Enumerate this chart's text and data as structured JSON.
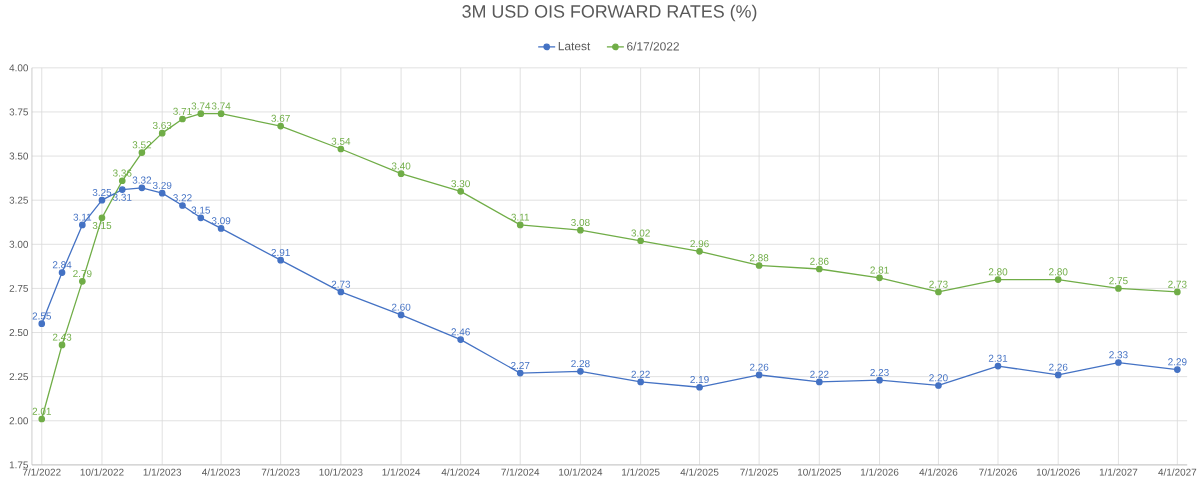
{
  "chart_data": {
    "type": "line",
    "title": "3M USD OIS FORWARD RATES (%)",
    "x": [
      "2022-07-01",
      "2022-08-01",
      "2022-09-01",
      "2022-10-01",
      "2022-11-01",
      "2022-12-01",
      "2023-01-01",
      "2023-02-01",
      "2023-03-01",
      "2023-04-01",
      "2023-07-01",
      "2023-10-01",
      "2024-01-01",
      "2024-04-01",
      "2024-07-01",
      "2024-10-01",
      "2025-01-01",
      "2025-04-01",
      "2025-07-01",
      "2025-10-01",
      "2026-01-01",
      "2026-04-01",
      "2026-07-01",
      "2026-10-01",
      "2027-01-01",
      "2027-04-01"
    ],
    "series": [
      {
        "name": "Latest",
        "color": "#4472c4",
        "values": [
          2.55,
          2.84,
          3.11,
          3.25,
          3.31,
          3.32,
          3.29,
          3.22,
          3.15,
          3.09,
          2.91,
          2.73,
          2.6,
          2.46,
          2.27,
          2.28,
          2.22,
          2.19,
          2.26,
          2.22,
          2.23,
          2.2,
          2.31,
          2.26,
          2.33,
          2.29
        ],
        "value_labels": [
          "2.55",
          "2.84",
          "3.11",
          "3.25",
          "3.31",
          "3.32",
          "3.29",
          "3.22",
          "3.15",
          "3.09",
          "2.91",
          "2.73",
          "2.60",
          "2.46",
          "2.27",
          "2.28",
          "2.22",
          "2.19",
          "2.26",
          "2.22",
          "2.23",
          "2.20",
          "2.31",
          "2.26",
          "2.33",
          "2.29"
        ]
      },
      {
        "name": "6/17/2022",
        "color": "#70ad47",
        "values": [
          2.01,
          2.43,
          2.79,
          3.15,
          3.36,
          3.52,
          3.63,
          3.71,
          3.74,
          3.74,
          3.67,
          3.54,
          3.4,
          3.3,
          3.11,
          3.08,
          3.02,
          2.96,
          2.88,
          2.86,
          2.81,
          2.73,
          2.8,
          2.8,
          2.75,
          2.73
        ],
        "value_labels": [
          "2.01",
          "2.43",
          "2.79",
          "3.15",
          "3.36",
          "3.52",
          "3.63",
          "3.71",
          "3.74",
          "3.74",
          "3.67",
          "3.54",
          "3.40",
          "3.30",
          "3.11",
          "3.08",
          "3.02",
          "2.96",
          "2.88",
          "2.86",
          "2.81",
          "2.73",
          "2.80",
          "2.80",
          "2.75",
          "2.73"
        ]
      }
    ],
    "xlim": [
      "2022-06-16",
      "2027-04-16"
    ],
    "xticks": [
      {
        "value": "2022-07-01",
        "label": "7/1/2022"
      },
      {
        "value": "2022-10-01",
        "label": "10/1/2022"
      },
      {
        "value": "2023-01-01",
        "label": "1/1/2023"
      },
      {
        "value": "2023-04-01",
        "label": "4/1/2023"
      },
      {
        "value": "2023-07-01",
        "label": "7/1/2023"
      },
      {
        "value": "2023-10-01",
        "label": "10/1/2023"
      },
      {
        "value": "2024-01-01",
        "label": "1/1/2024"
      },
      {
        "value": "2024-04-01",
        "label": "4/1/2024"
      },
      {
        "value": "2024-07-01",
        "label": "7/1/2024"
      },
      {
        "value": "2024-10-01",
        "label": "10/1/2024"
      },
      {
        "value": "2025-01-01",
        "label": "1/1/2025"
      },
      {
        "value": "2025-04-01",
        "label": "4/1/2025"
      },
      {
        "value": "2025-07-01",
        "label": "7/1/2025"
      },
      {
        "value": "2025-10-01",
        "label": "10/1/2025"
      },
      {
        "value": "2026-01-01",
        "label": "1/1/2026"
      },
      {
        "value": "2026-04-01",
        "label": "4/1/2026"
      },
      {
        "value": "2026-07-01",
        "label": "7/1/2026"
      },
      {
        "value": "2026-10-01",
        "label": "10/1/2026"
      },
      {
        "value": "2027-01-01",
        "label": "1/1/2027"
      },
      {
        "value": "2027-04-01",
        "label": "4/1/2027"
      }
    ],
    "ylim": [
      1.75,
      4
    ],
    "yticks": [
      1.75,
      {
        "value": 2,
        "label": "2.00"
      },
      2.25,
      {
        "value": 2.5,
        "label": "2.50"
      },
      2.75,
      {
        "value": 3,
        "label": "3.00"
      },
      3.25,
      {
        "value": 3.5,
        "label": "3.50"
      },
      3.75,
      {
        "value": 4,
        "label": "4.00"
      }
    ],
    "grid": true,
    "legend": "top",
    "marker": "circle",
    "line_style": "solid"
  }
}
